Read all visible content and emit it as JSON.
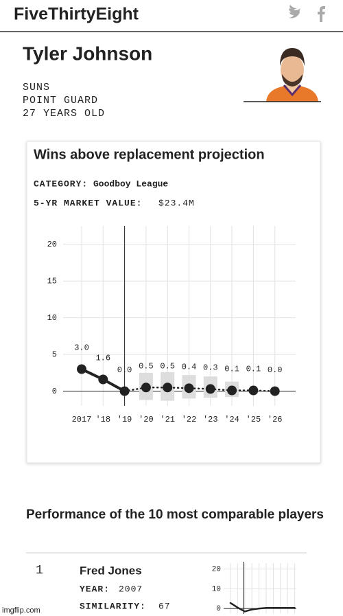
{
  "header": {
    "brand": "FiveThirtyEight"
  },
  "player": {
    "name": "Tyler Johnson",
    "team": "SUNS",
    "position": "POINT GUARD",
    "age": "27 YEARS OLD"
  },
  "card": {
    "title": "Wins above replacement projection",
    "category_label": "CATEGORY:",
    "category": "Goodboy League",
    "market_label": "5-YR MARKET VALUE:",
    "market_value": "$23.4M"
  },
  "comparables": {
    "title": "Performance of the 10 most comparable players",
    "rank": "1",
    "name": "Fred Jones",
    "year_label": "YEAR:",
    "year": "2007",
    "similarity_label": "SIMILARITY:",
    "similarity": "67"
  },
  "watermark": "imgflip.com",
  "chart_data": [
    {
      "type": "line",
      "categories": [
        "2017",
        "'18",
        "'19",
        "'20",
        "'21",
        "'22",
        "'23",
        "'24",
        "'25",
        "'26"
      ],
      "values": [
        3.0,
        1.6,
        0.0,
        0.5,
        0.5,
        0.4,
        0.3,
        0.1,
        0.1,
        0.0
      ],
      "value_labels": [
        "3.0",
        "1.6",
        "0.0",
        "0.5",
        "0.5",
        "0.4",
        "0.3",
        "0.1",
        "0.1",
        "0.0"
      ],
      "intervals": [
        null,
        null,
        null,
        [
          -1.2,
          2.5
        ],
        [
          -1.3,
          2.6
        ],
        [
          -1.0,
          2.2
        ],
        [
          -0.9,
          2.0
        ],
        [
          -0.8,
          1.3
        ],
        null,
        null
      ],
      "projection_start": "'19",
      "color": "#222222",
      "interval_color": "#dddddd",
      "ylim": [
        -2,
        22.5
      ],
      "yticks": [
        0,
        5,
        10,
        15,
        20
      ],
      "grid": true
    },
    {
      "type": "line",
      "values": [
        2.8,
        0.5,
        -1.5,
        -0.5,
        0,
        0.3,
        0.3,
        0.3,
        0.3,
        0.3
      ],
      "color": "#222222",
      "ylim": [
        -2.5,
        23
      ],
      "yticks": [
        0,
        10,
        20
      ],
      "grid": true
    }
  ]
}
